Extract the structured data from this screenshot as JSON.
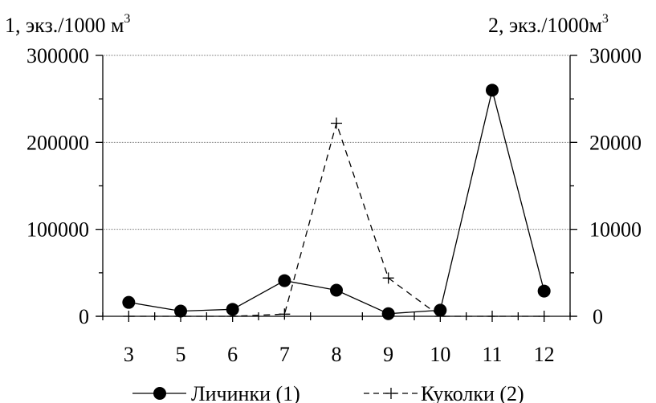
{
  "chart_data": {
    "type": "line",
    "categories": [
      "3",
      "5",
      "6",
      "7",
      "8",
      "9",
      "10",
      "11",
      "12"
    ],
    "y_left": {
      "label_prefix": "1, экз./1000 м",
      "label_sup": "3",
      "ylim": [
        0,
        300000
      ],
      "ticks": [
        "0",
        "100000",
        "200000",
        "300000"
      ]
    },
    "y_right": {
      "label_prefix": "2, экз./1000м",
      "label_sup": "3",
      "ylim": [
        0,
        30000
      ],
      "ticks": [
        "0",
        "10000",
        "20000",
        "30000"
      ]
    },
    "series": [
      {
        "name": "Личинки (1)",
        "axis": "left",
        "style": "solid-circle",
        "color": "#000000",
        "values": [
          16000,
          6000,
          8000,
          41000,
          30000,
          3000,
          7000,
          260000,
          29000
        ]
      },
      {
        "name": "Куколки (2)",
        "axis": "right",
        "style": "dashed-plus",
        "color": "#000000",
        "values": [
          0,
          0,
          0,
          250,
          22200,
          4400,
          0,
          0,
          0
        ]
      }
    ],
    "grid": "horizontal-major",
    "legend": "bottom-center"
  }
}
